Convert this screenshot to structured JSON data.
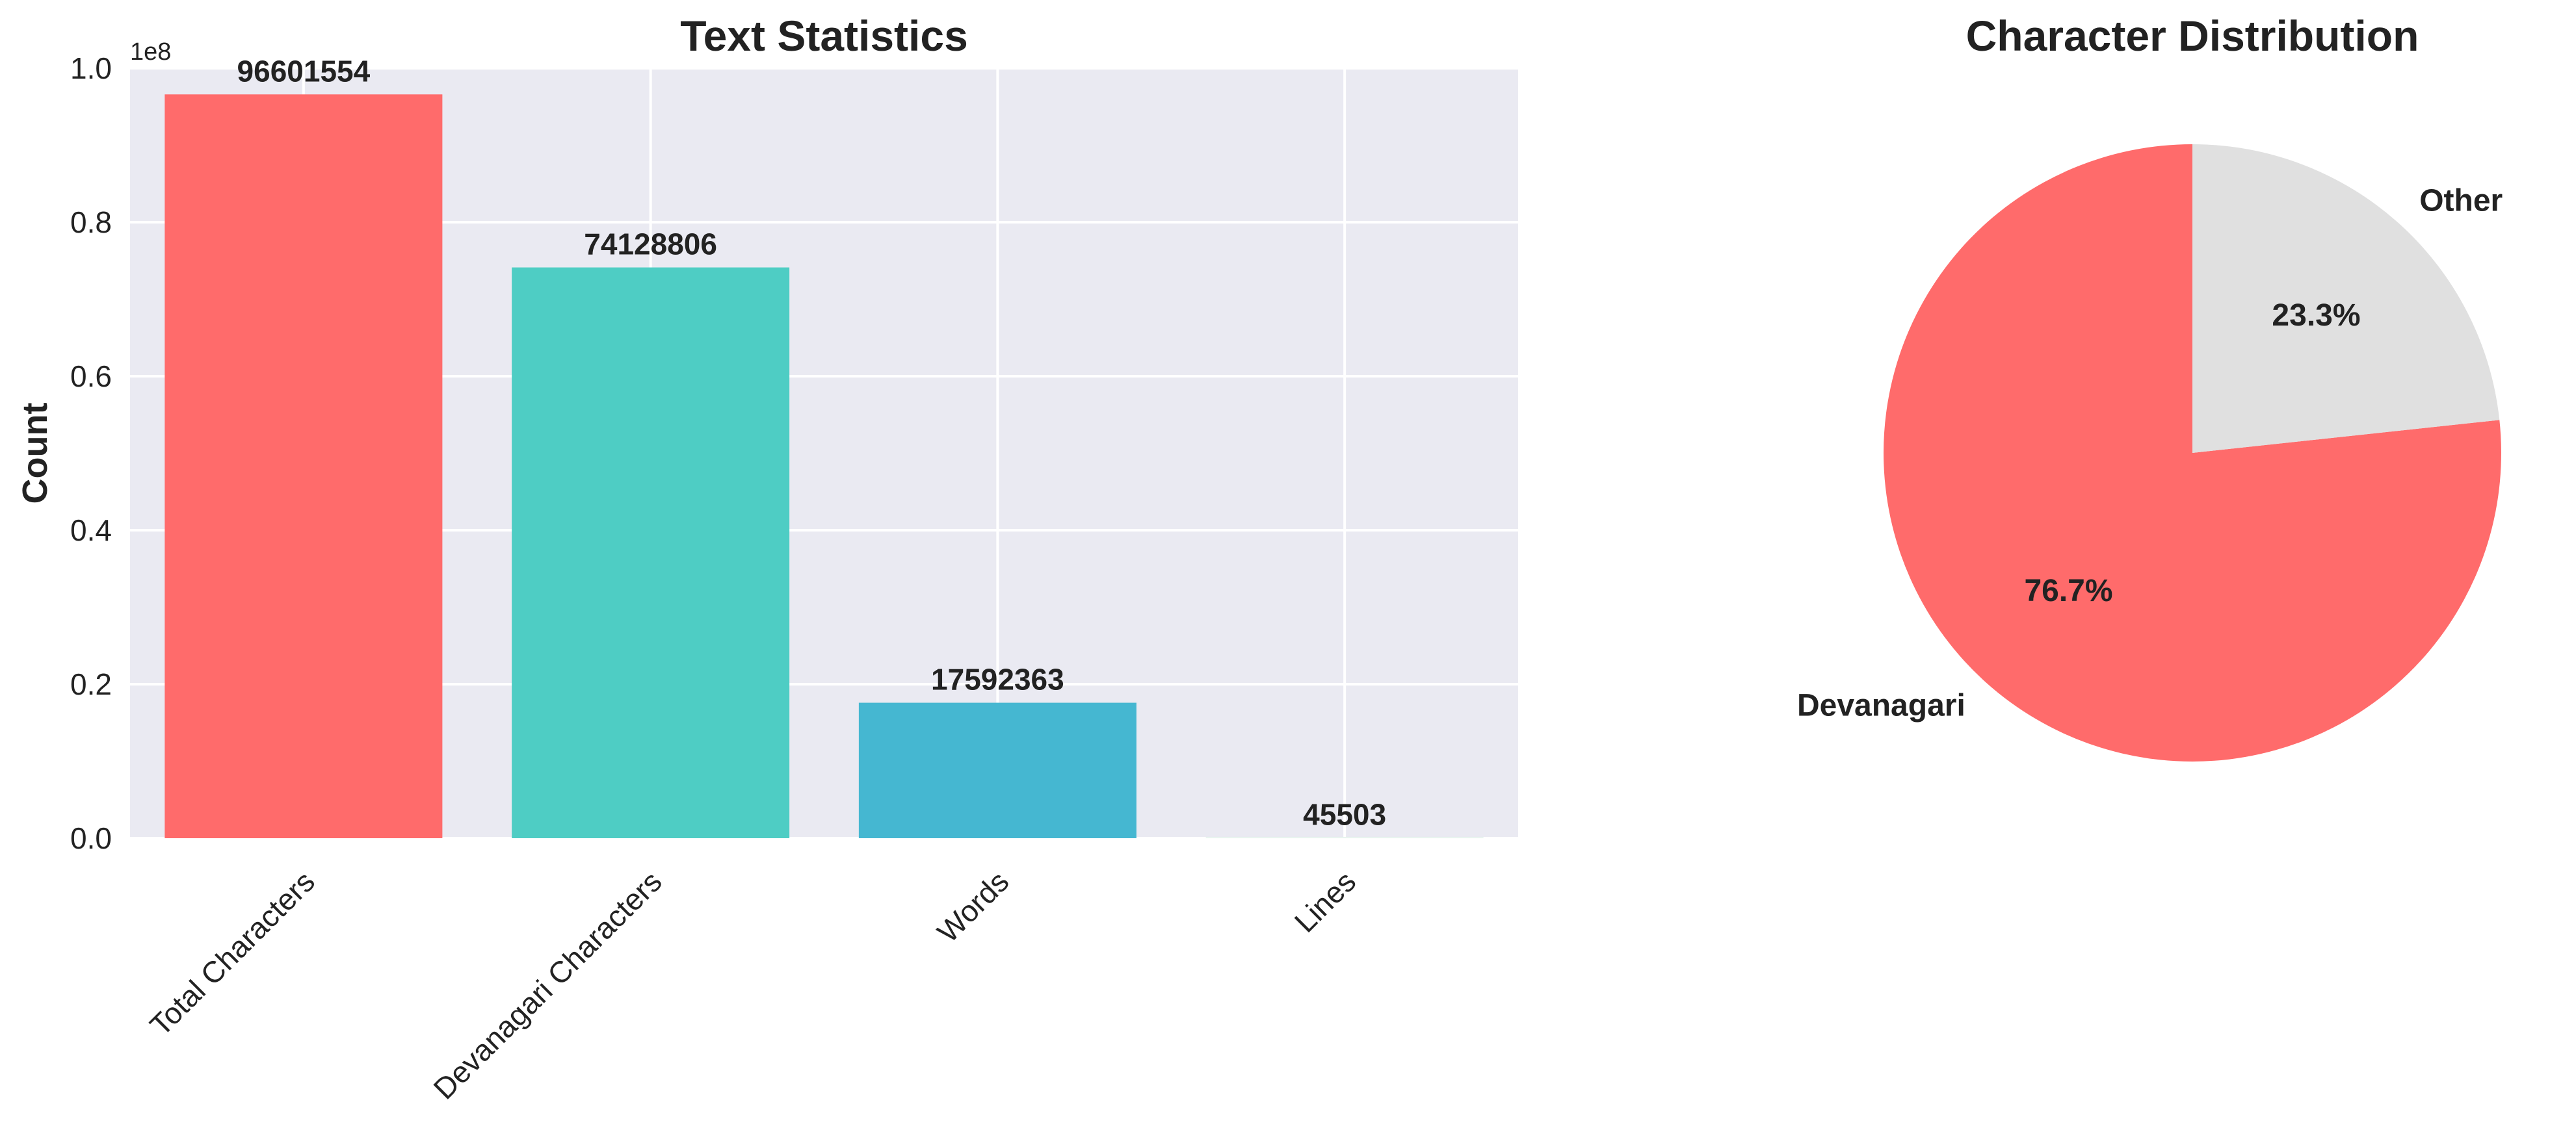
{
  "chart_data": [
    {
      "type": "bar",
      "title": "Text Statistics",
      "ylabel": "Count",
      "xlabel": "",
      "y_offset_label": "1e8",
      "y_scale": 100000000,
      "ylim": [
        0,
        1.0
      ],
      "y_ticks": [
        "0.0",
        "0.2",
        "0.4",
        "0.6",
        "0.8",
        "1.0"
      ],
      "grid": true,
      "categories": [
        "Total Characters",
        "Devanagari Characters",
        "Words",
        "Lines"
      ],
      "values": [
        96601554,
        74128806,
        17592363,
        45503
      ],
      "value_labels": [
        "96601554",
        "74128806",
        "17592363",
        "45503"
      ],
      "colors": [
        "#ff6b6b",
        "#4ecdc4",
        "#45b7d1",
        "#96ceb4"
      ]
    },
    {
      "type": "pie",
      "title": "Character Distribution",
      "labels": [
        "Devanagari",
        "Other"
      ],
      "values": [
        76.7,
        23.3
      ],
      "pct_labels": [
        "76.7%",
        "23.3%"
      ],
      "colors": [
        "#ff6b6b",
        "#e0e0e0"
      ]
    }
  ]
}
